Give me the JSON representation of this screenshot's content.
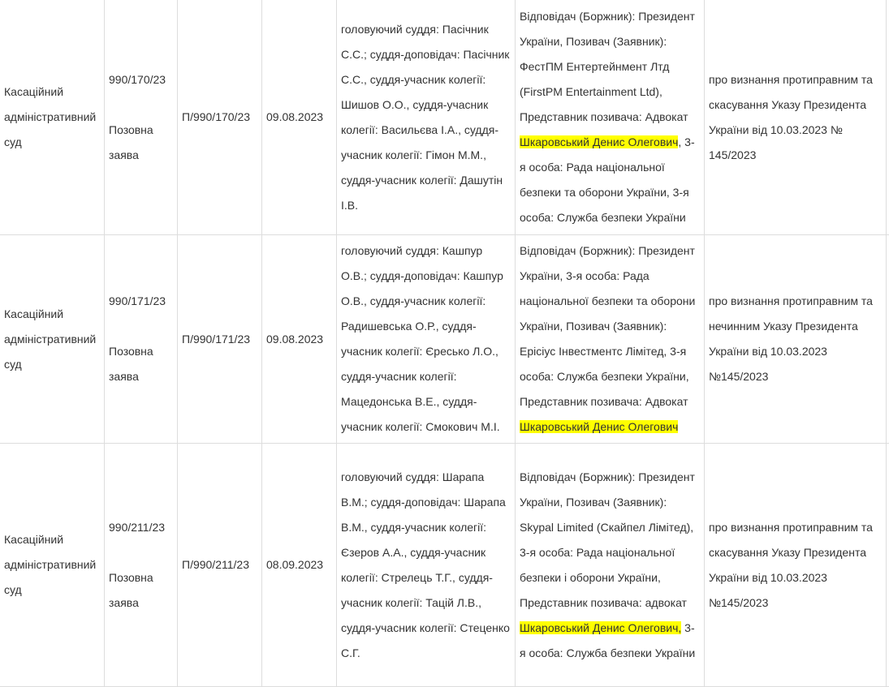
{
  "highlight_color": "#ffff00",
  "rows": [
    {
      "court": "Касаційний адміністративний суд",
      "case_number": "990/170/23",
      "doc_type": "Позовна заява",
      "proceeding": "П/990/170/23",
      "date": "09.08.2023",
      "judges": "головуючий суддя: Пасічник С.С.; суддя-доповідач: Пасічник С.С., суддя-учасник колегії: Шишов О.О., суддя-учасник колегії: Васильєва І.А., суддя-учасник колегії: Гімон М.М., суддя-учасник колегії: Дашутін І.В.",
      "parties_before": "Відповідач (Боржник): Президент України, Позивач (Заявник): ФестПМ Ентертейнмент Лтд (FirstPM Entertainment Ltd), Представник позивача: Адвокат ",
      "parties_highlight": "Шкаровський Денис Олегович",
      "parties_after": ", 3-я особа: Рада національної безпеки та оборони України, 3-я особа: Служба безпеки України",
      "subject": "про визнання протиправним та скасування Указу Президента України від 10.03.2023 № 145/2023"
    },
    {
      "court": "Касаційний адміністративний суд",
      "case_number": "990/171/23",
      "doc_type": "Позовна заява",
      "proceeding": "П/990/171/23",
      "date": "09.08.2023",
      "judges": "головуючий суддя: Кашпур О.В.; суддя-доповідач: Кашпур О.В., суддя-учасник колегії: Радишевська О.Р., суддя-учасник колегії: Єресько Л.О., суддя-учасник колегії: Мацедонська В.Е., суддя-учасник колегії: Смокович М.І.",
      "parties_before": "Відповідач (Боржник): Президент України, 3-я особа: Рада національної безпеки та оборони України, Позивач (Заявник): Ерісіус Інвестментс Лімітед, 3-я особа: Служба безпеки України, Представник позивача: Адвокат ",
      "parties_highlight": "Шкаровський Денис Олегович",
      "parties_after": "",
      "subject": "про визнання протиправним та нечинним Указу Президента України від 10.03.2023 №145/2023"
    },
    {
      "court": "Касаційний адміністративний суд",
      "case_number": "990/211/23",
      "doc_type": "Позовна заява",
      "proceeding": "П/990/211/23",
      "date": "08.09.2023",
      "judges": "головуючий суддя: Шарапа В.М.; суддя-доповідач: Шарапа В.М., суддя-учасник колегії: Єзеров А.А., суддя-учасник колегії: Стрелець Т.Г., суддя-учасник колегії: Тацій Л.В., суддя-учасник колегії: Стеценко С.Г.",
      "parties_before": "Відповідач (Боржник): Президент України, Позивач (Заявник): Skypal Limited (Скайпел Лімітед), 3-я особа: Рада національної безпеки і оборони України, Представник позивача: адвокат ",
      "parties_highlight": "Шкаровський Денис Олегович,",
      "parties_after": " 3-я особа: Служба безпеки України",
      "subject": "про визнання протиправним та скасування Указу Президента України від 10.03.2023 №145/2023"
    }
  ]
}
